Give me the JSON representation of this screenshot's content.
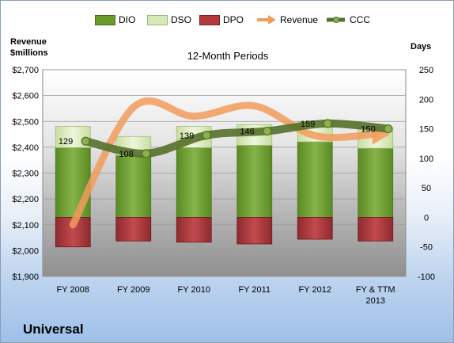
{
  "chart_data": {
    "type": "bar",
    "subtitle": "12-Month Periods",
    "company": "Universal",
    "left_axis": {
      "label_line1": "Revenue",
      "label_line2": "$millions",
      "range": [
        1900,
        2700
      ],
      "ticks": [
        "$2,700",
        "$2,600",
        "$2,500",
        "$2,400",
        "$2,300",
        "$2,200",
        "$2,100",
        "$2,000",
        "$1,900"
      ],
      "tick_values": [
        2700,
        2600,
        2500,
        2400,
        2300,
        2200,
        2100,
        2000,
        1900
      ]
    },
    "right_axis": {
      "label": "Days",
      "range": [
        -100,
        250
      ],
      "ticks": [
        "250",
        "200",
        "150",
        "100",
        "50",
        "0",
        "-50",
        "-100"
      ],
      "tick_values": [
        250,
        200,
        150,
        100,
        50,
        0,
        -50,
        -100
      ]
    },
    "categories": [
      "FY 2008",
      "FY 2009",
      "FY 2010",
      "FY 2011",
      "FY 2012",
      "FY & TTM 2013"
    ],
    "category_labels": [
      [
        "FY 2008"
      ],
      [
        "FY 2009"
      ],
      [
        "FY 2010"
      ],
      [
        "FY 2011"
      ],
      [
        "FY 2012"
      ],
      [
        "FY & TTM",
        "2013"
      ]
    ],
    "series": [
      {
        "name": "DIO",
        "axis": "right",
        "kind": "stacked-bar",
        "values": [
          118,
          105,
          118,
          122,
          128,
          117
        ],
        "color": "#6b9a2c"
      },
      {
        "name": "DSO",
        "axis": "right",
        "kind": "stacked-bar",
        "values": [
          36,
          32,
          36,
          35,
          34,
          35
        ],
        "color": "#d6e8b5"
      },
      {
        "name": "DPO",
        "axis": "right",
        "kind": "negative-bar",
        "values": [
          -50,
          -40,
          -42,
          -45,
          -37,
          -40
        ],
        "color": "#b23a3e"
      },
      {
        "name": "Revenue",
        "axis": "left",
        "kind": "line",
        "values": [
          2100,
          2555,
          2520,
          2560,
          2445,
          2450
        ],
        "color": "#f29b5c"
      },
      {
        "name": "CCC",
        "axis": "right",
        "kind": "line",
        "values": [
          129,
          108,
          139,
          146,
          159,
          150
        ],
        "color": "#55702a",
        "labels": [
          "129",
          "108",
          "139",
          "146",
          "159",
          "150"
        ]
      }
    ]
  }
}
